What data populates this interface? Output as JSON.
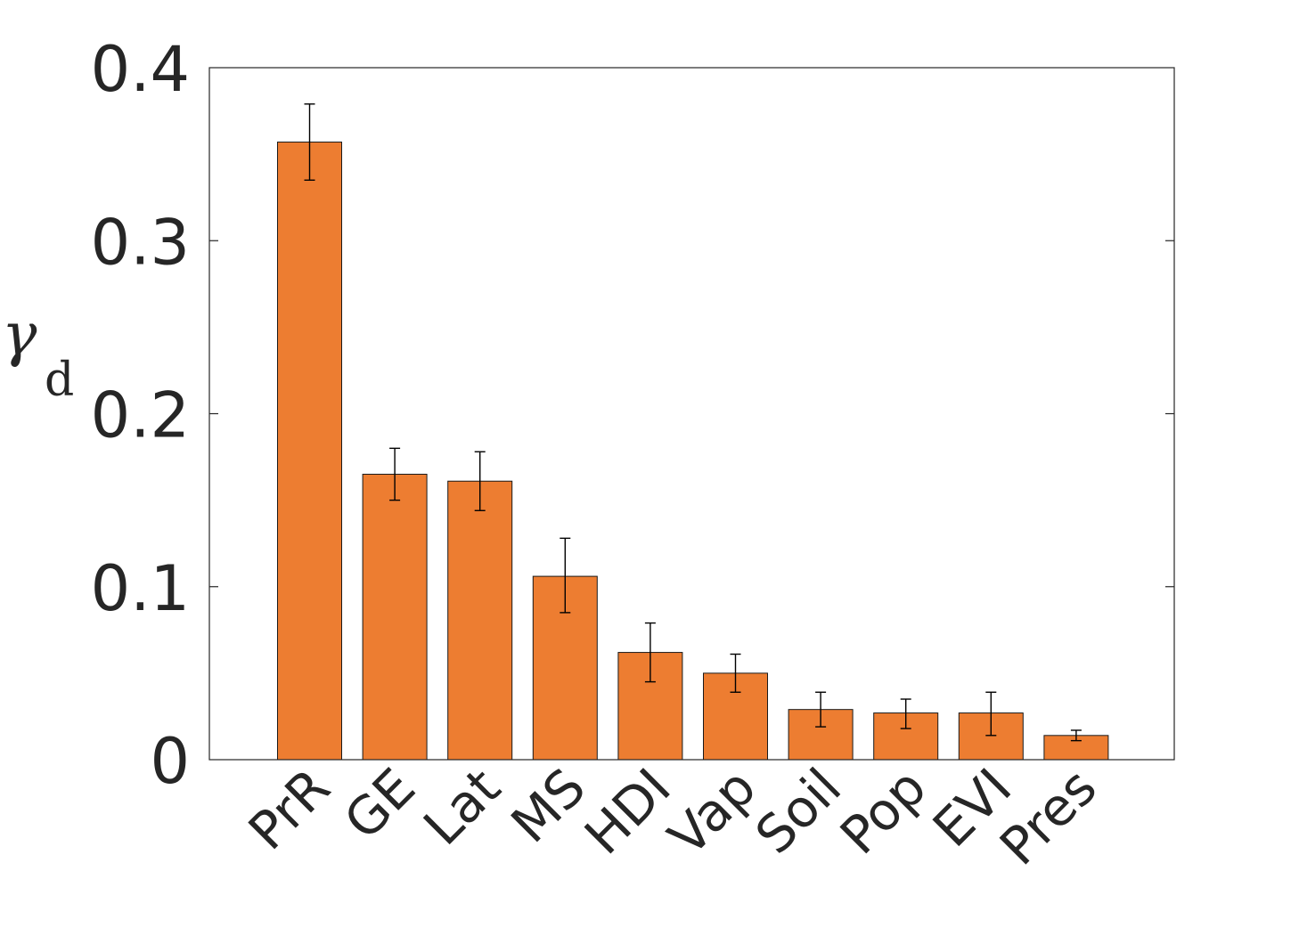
{
  "chart_data": {
    "type": "bar",
    "title": "",
    "xlabel": "",
    "ylabel": "γ",
    "ylabel_subscript": "d",
    "categories": [
      "PrR",
      "GE",
      "Lat",
      "MS",
      "HDI",
      "Vap",
      "Soil",
      "Pop",
      "EVI",
      "Pres"
    ],
    "values": [
      0.357,
      0.165,
      0.161,
      0.106,
      0.062,
      0.05,
      0.029,
      0.027,
      0.027,
      0.014
    ],
    "error_low": [
      0.335,
      0.15,
      0.144,
      0.085,
      0.045,
      0.039,
      0.019,
      0.018,
      0.014,
      0.011
    ],
    "error_high": [
      0.379,
      0.18,
      0.178,
      0.128,
      0.079,
      0.061,
      0.039,
      0.035,
      0.039,
      0.017
    ],
    "ylim": [
      0,
      0.4
    ],
    "yticks": [
      "0",
      "0.1",
      "0.2",
      "0.3",
      "0.4"
    ],
    "ytick_values": [
      0,
      0.1,
      0.2,
      0.3,
      0.4
    ],
    "grid": false,
    "bar_color": "#ED7D31"
  }
}
